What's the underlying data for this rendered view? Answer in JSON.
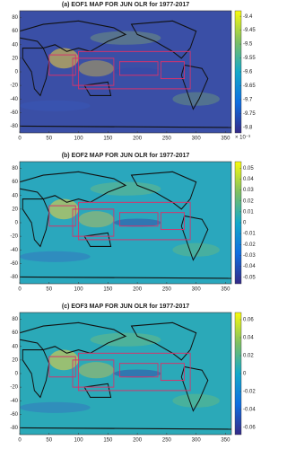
{
  "chart_data": [
    {
      "type": "map",
      "title": "(a) EOF1 MAP FOR JUN OLR for 1977-2017",
      "background": "#3a4fa6",
      "xlim": [
        0,
        360
      ],
      "xticks": [
        0,
        50,
        100,
        150,
        200,
        250,
        300,
        350
      ],
      "ylim": [
        -90,
        90
      ],
      "yticks": [
        80,
        60,
        40,
        20,
        0,
        -20,
        -40,
        -60,
        -80
      ],
      "clim": [
        -9.82,
        -9.38
      ],
      "cticks": [
        -9.4,
        -9.45,
        -9.5,
        -9.55,
        -9.6,
        -9.65,
        -9.7,
        -9.75,
        -9.8
      ],
      "colorbar_exponent": "× 10⁻³"
    },
    {
      "type": "map",
      "title": "(b) EOF2 MAP FOR JUN OLR for 1977-2017",
      "background": "#2aa7bd",
      "xlim": [
        0,
        360
      ],
      "xticks": [
        0,
        50,
        100,
        150,
        200,
        250,
        300,
        350
      ],
      "ylim": [
        -90,
        90
      ],
      "yticks": [
        80,
        60,
        40,
        20,
        0,
        -20,
        -40,
        -60,
        -80
      ],
      "clim": [
        -0.056,
        0.056
      ],
      "cticks": [
        0.05,
        0.04,
        0.03,
        0.02,
        0.01,
        0,
        -0.01,
        -0.02,
        -0.03,
        -0.04,
        -0.05
      ]
    },
    {
      "type": "map",
      "title": "(c) EOF3 MAP FOR JUN OLR for 1977-2017",
      "background": "#2ba9b8",
      "xlim": [
        0,
        360
      ],
      "xticks": [
        0,
        50,
        100,
        150,
        200,
        250,
        300,
        350
      ],
      "ylim": [
        -90,
        90
      ],
      "yticks": [
        80,
        60,
        40,
        20,
        0,
        -20,
        -40,
        -60,
        -80
      ],
      "clim": [
        -0.068,
        0.068
      ],
      "cticks": [
        0.06,
        0.04,
        0.02,
        0,
        -0.02,
        -0.04,
        -0.06
      ]
    }
  ]
}
